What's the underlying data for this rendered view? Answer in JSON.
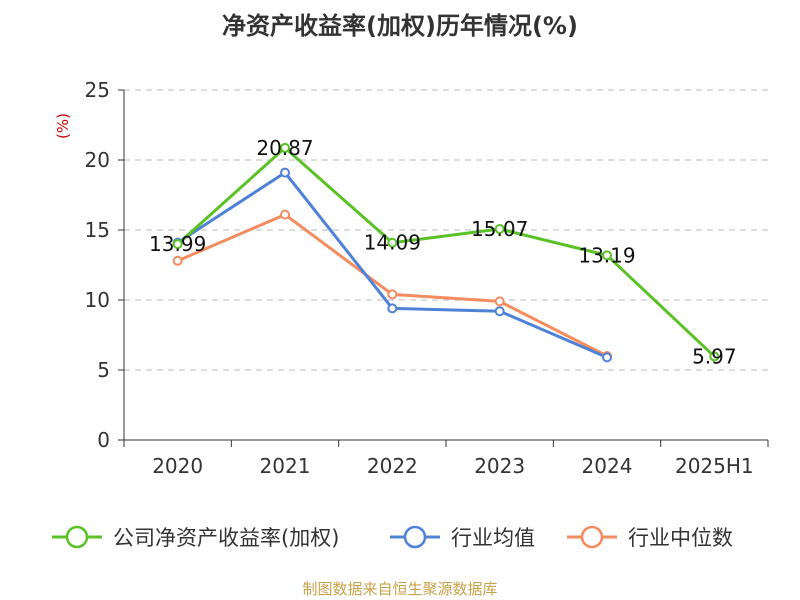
{
  "chart_data": {
    "type": "line",
    "title": "净资产收益率(加权)历年情况(%)",
    "ylabel": "(%)",
    "xlabel": "",
    "categories": [
      "2020",
      "2021",
      "2022",
      "2023",
      "2024",
      "2025H1"
    ],
    "ylim": [
      0,
      25
    ],
    "yticks": [
      0,
      5,
      10,
      15,
      20,
      25
    ],
    "grid": true,
    "legend_position": "bottom",
    "series": [
      {
        "name": "公司净资产收益率(加权)",
        "color": "#5ac127",
        "values": [
          13.99,
          20.87,
          14.09,
          15.07,
          13.19,
          5.97
        ],
        "labels": [
          "13.99",
          "20.87",
          "14.09",
          "15.07",
          "13.19",
          "5.97"
        ]
      },
      {
        "name": "行业均值",
        "color": "#4e82d6",
        "values": [
          14.1,
          19.1,
          9.4,
          9.2,
          5.9,
          null
        ]
      },
      {
        "name": "行业中位数",
        "color": "#f58c5f",
        "values": [
          12.8,
          16.1,
          10.4,
          9.9,
          6.0,
          null
        ]
      }
    ]
  },
  "footer": {
    "source": "制图数据来自恒生聚源数据库"
  }
}
